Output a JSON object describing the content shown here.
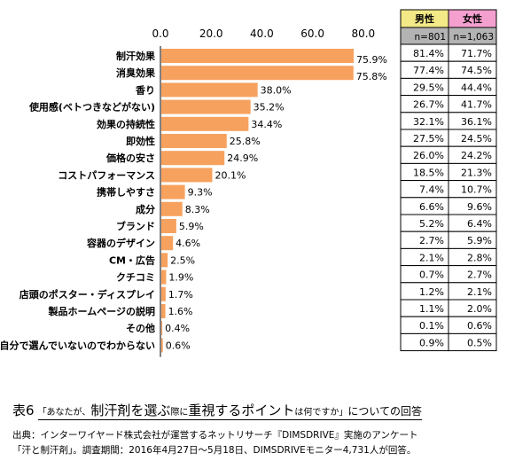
{
  "chart_data": {
    "type": "bar",
    "orientation": "horizontal",
    "xlim": [
      0,
      80
    ],
    "ticks": [
      "0.0",
      "20.0",
      "40.0",
      "60.0",
      "80.0"
    ],
    "tick_values": [
      0,
      20,
      40,
      60,
      80
    ],
    "grid": false,
    "bar_color": "#f7a15e",
    "categories": [
      "制汗効果",
      "消臭効果",
      "香り",
      "使用感(ベトつきなどがない)",
      "効果の持続性",
      "即効性",
      "価格の安さ",
      "コストパフォーマンス",
      "携帯しやすさ",
      "成分",
      "ブランド",
      "容器のデザイン",
      "CM・広告",
      "クチコミ",
      "店頭のポスター・ディスプレイ",
      "製品ホームページの説明",
      "その他",
      "自分で選んでいないのでわからない"
    ],
    "values": [
      75.9,
      75.8,
      38.0,
      35.2,
      34.4,
      25.8,
      24.9,
      20.1,
      9.3,
      8.3,
      5.9,
      4.6,
      2.5,
      1.9,
      1.7,
      1.6,
      0.4,
      0.6
    ],
    "value_labels": [
      "75.9%",
      "75.8%",
      "38.0%",
      "35.2%",
      "34.4%",
      "25.8%",
      "24.9%",
      "20.1%",
      "9.3%",
      "8.3%",
      "5.9%",
      "4.6%",
      "2.5%",
      "1.9%",
      "1.7%",
      "1.6%",
      "0.4%",
      "0.6%"
    ]
  },
  "table": {
    "male_header": "男性",
    "female_header": "女性",
    "male_header_color": "#f3e987",
    "female_header_color": "#f3a0cf",
    "n_row_color": "#b3b3b3",
    "male_n": "n=801",
    "female_n": "n=1,063",
    "male_values": [
      "81.4%",
      "77.4%",
      "29.5%",
      "26.7%",
      "32.1%",
      "27.5%",
      "26.0%",
      "18.5%",
      "7.4%",
      "6.6%",
      "5.2%",
      "2.7%",
      "2.1%",
      "0.7%",
      "1.2%",
      "1.1%",
      "0.1%",
      "0.9%"
    ],
    "female_values": [
      "71.7%",
      "74.5%",
      "44.4%",
      "41.7%",
      "36.1%",
      "24.5%",
      "24.2%",
      "21.3%",
      "10.7%",
      "9.6%",
      "6.4%",
      "5.9%",
      "2.8%",
      "2.7%",
      "2.1%",
      "2.0%",
      "0.6%",
      "0.5%"
    ]
  },
  "caption": {
    "prefix": "表",
    "number": "6",
    "q_open": "「あなたが、",
    "part1": "制汗剤を選ぶ",
    "part2": "際に",
    "part3": "重視する",
    "part4": "ポイント",
    "q_close": "は何ですか」",
    "tail": "についての回答"
  },
  "source": {
    "line1": "出典：インターワイヤード株式会社が運営するネットリサーチ『DIMSDRIVE』実施のアンケート",
    "line2": "「汗と制汗剤」。調査期間：2016年4月27日～5月18日、DIMSDRIVEモニター4,731人が回答。"
  }
}
